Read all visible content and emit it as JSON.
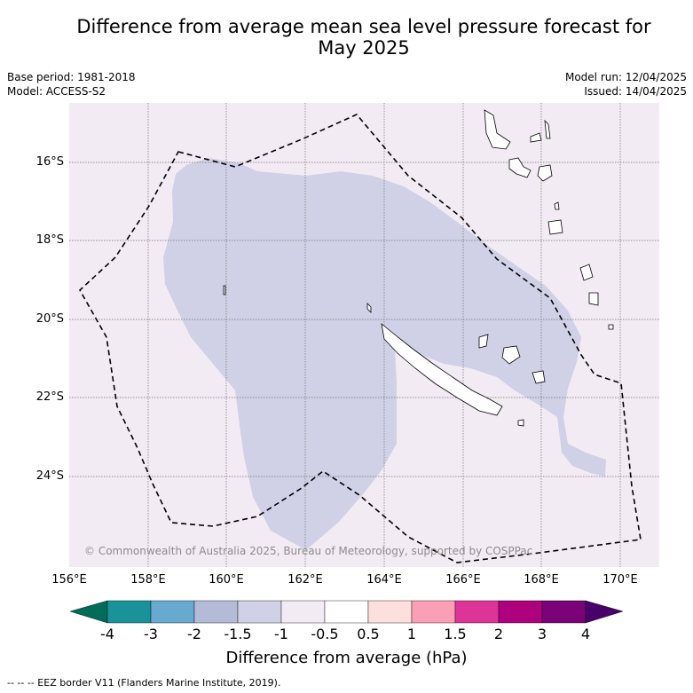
{
  "header": {
    "title_line1": "Difference from average mean sea level pressure forecast for",
    "title_line2": "May 2025",
    "base_period": "Base period: 1981-2018",
    "model": "Model: ACCESS-S2",
    "model_run": "Model run: 12/04/2025",
    "issued": "Issued: 14/04/2025"
  },
  "map": {
    "background_color": "#f3ebf4",
    "anomaly_fill_color": "#d0d1e6",
    "anomaly_fill_value_hPa": "-1.5 to -1",
    "credit": "© Commonwealth of Australia 2025, Bureau of Meteorology, supported by COSPPac",
    "lat_labels": [
      "16°S",
      "18°S",
      "20°S",
      "22°S",
      "24°S"
    ],
    "lon_labels": [
      "156°E",
      "158°E",
      "160°E",
      "162°E",
      "164°E",
      "166°E",
      "168°E",
      "170°E"
    ]
  },
  "colorbar": {
    "title": "Difference from average (hPa)",
    "ticks": [
      "-4",
      "-3",
      "-2",
      "-1.5",
      "-1",
      "-0.5",
      "0.5",
      "1",
      "1.5",
      "2",
      "3",
      "4"
    ],
    "colors": [
      "#016c59",
      "#1a9299",
      "#67a9cf",
      "#b3bbd7",
      "#d0d1e6",
      "#f3ebf4",
      "#ffffff",
      "#fde0dd",
      "#fa9fb5",
      "#dd3497",
      "#ae017e",
      "#7a0177",
      "#49006a"
    ]
  },
  "footer": {
    "eez_note": "--  --  -- EEZ border V11 (Flanders Marine Institute, 2019)."
  }
}
